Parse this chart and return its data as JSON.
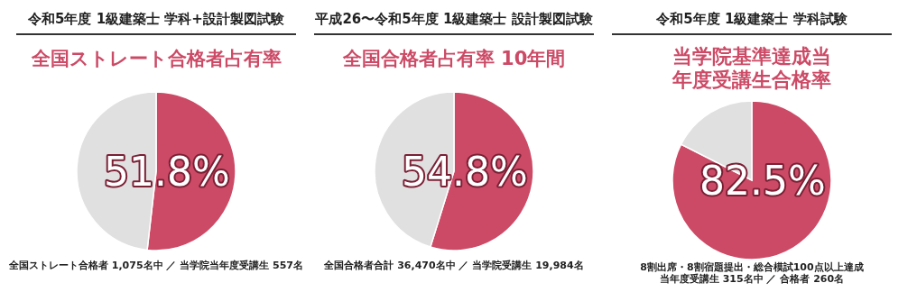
{
  "chart_data": [
    {
      "type": "pie",
      "title": "令和5年度 1級建築士 学科+設計製図試験",
      "subtitle": "全国ストレート合格者占有率",
      "categories": [
        null,
        null
      ],
      "values": [
        51.8,
        48.2
      ],
      "colors": [
        "#cc4a66",
        "#e1e0e1"
      ],
      "value_labels": [
        "51.8%",
        null
      ],
      "annotations": [
        "全国ストレート合格者 1,075名中 ／ 当学院当年度受講生 557名"
      ]
    },
    {
      "type": "pie",
      "title": "平成26〜令和5年度 1級建築士 設計製図試験",
      "subtitle": "全国合格者占有率 10年間",
      "categories": [
        null,
        null
      ],
      "values": [
        54.8,
        45.2
      ],
      "colors": [
        "#cc4a66",
        "#e1e0e1"
      ],
      "value_labels": [
        "54.8%",
        null
      ],
      "annotations": [
        "全国合格者合計 36,470名中 ／ 当学院受講生 19,984名"
      ]
    },
    {
      "type": "pie",
      "title": "令和5年度 1級建築士 学科試験",
      "subtitle": "当学院基準達成当年度受講生合格率",
      "categories": [
        null,
        null
      ],
      "values": [
        82.5,
        17.5
      ],
      "colors": [
        "#cc4a66",
        "#e1e0e1"
      ],
      "value_labels": [
        "82.5%",
        null
      ],
      "annotations": [
        "8割出席・8割宿題提出・総合模試100点以上達成",
        "当年度受講生 315名中 ／ 合格者 260名"
      ]
    }
  ]
}
